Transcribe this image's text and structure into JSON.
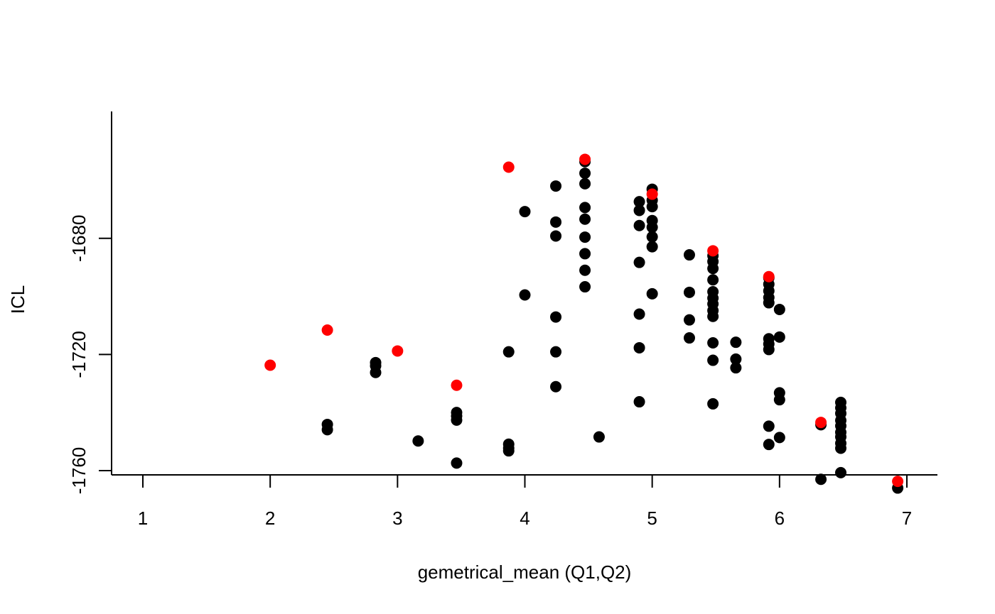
{
  "chart_data": {
    "type": "scatter",
    "title": "",
    "xlabel": "gemetrical_mean (Q1,Q2)",
    "ylabel": "ICL",
    "xlim": [
      1,
      7
    ],
    "ylim": [
      -1760,
      -1650
    ],
    "x_ticks": [
      "1",
      "2",
      "3",
      "4",
      "5",
      "6",
      "7"
    ],
    "y_ticks": [
      "-1760",
      "-1720",
      "-1680"
    ],
    "grid": false,
    "legend": "none",
    "colors": {
      "points": "#000000",
      "highlight": "#ff0000"
    },
    "series": [
      {
        "color": "#000000",
        "points": [
          [
            2.449,
            -1744.1
          ],
          [
            2.449,
            -1745.9
          ],
          [
            2.828,
            -1722.8
          ],
          [
            2.828,
            -1723.9
          ],
          [
            2.828,
            -1726.2
          ],
          [
            3.162,
            -1749.8
          ],
          [
            3.464,
            -1740.0
          ],
          [
            3.464,
            -1741.2
          ],
          [
            3.464,
            -1742.6
          ],
          [
            3.464,
            -1757.4
          ],
          [
            3.873,
            -1719.1
          ],
          [
            3.873,
            -1750.9
          ],
          [
            3.873,
            -1752.3
          ],
          [
            3.873,
            -1753.2
          ],
          [
            4.0,
            -1670.8
          ],
          [
            4.0,
            -1699.5
          ],
          [
            4.243,
            -1662.0
          ],
          [
            4.243,
            -1674.4
          ],
          [
            4.243,
            -1679.2
          ],
          [
            4.243,
            -1707.1
          ],
          [
            4.243,
            -1719.1
          ],
          [
            4.243,
            -1731.1
          ],
          [
            4.472,
            -1653.6
          ],
          [
            4.472,
            -1657.6
          ],
          [
            4.472,
            -1661.2
          ],
          [
            4.472,
            -1669.4
          ],
          [
            4.472,
            -1673.4
          ],
          [
            4.472,
            -1679.6
          ],
          [
            4.472,
            -1685.3
          ],
          [
            4.472,
            -1691.0
          ],
          [
            4.472,
            -1696.7
          ],
          [
            4.583,
            -1748.4
          ],
          [
            4.899,
            -1667.4
          ],
          [
            4.899,
            -1670.4
          ],
          [
            4.899,
            -1675.6
          ],
          [
            4.899,
            -1688.3
          ],
          [
            4.899,
            -1706.1
          ],
          [
            4.899,
            -1717.7
          ],
          [
            4.899,
            -1736.3
          ],
          [
            5.0,
            -1663.1
          ],
          [
            5.0,
            -1666.9
          ],
          [
            5.0,
            -1669.1
          ],
          [
            5.0,
            -1673.9
          ],
          [
            5.0,
            -1676.2
          ],
          [
            5.0,
            -1679.5
          ],
          [
            5.0,
            -1682.9
          ],
          [
            5.0,
            -1699.1
          ],
          [
            5.292,
            -1685.7
          ],
          [
            5.292,
            -1698.6
          ],
          [
            5.292,
            -1708.1
          ],
          [
            5.292,
            -1714.3
          ],
          [
            5.477,
            -1686.0
          ],
          [
            5.477,
            -1688.0
          ],
          [
            5.477,
            -1690.4
          ],
          [
            5.477,
            -1694.3
          ],
          [
            5.477,
            -1698.4
          ],
          [
            5.477,
            -1700.6
          ],
          [
            5.477,
            -1702.6
          ],
          [
            5.477,
            -1704.9
          ],
          [
            5.477,
            -1706.9
          ],
          [
            5.477,
            -1716.0
          ],
          [
            5.477,
            -1722.0
          ],
          [
            5.477,
            -1737.0
          ],
          [
            5.657,
            -1715.8
          ],
          [
            5.657,
            -1721.6
          ],
          [
            5.657,
            -1724.6
          ],
          [
            5.916,
            -1693.6
          ],
          [
            5.916,
            -1695.8
          ],
          [
            5.916,
            -1698.1
          ],
          [
            5.916,
            -1700.4
          ],
          [
            5.916,
            -1702.2
          ],
          [
            5.916,
            -1714.6
          ],
          [
            5.916,
            -1716.4
          ],
          [
            5.916,
            -1718.3
          ],
          [
            5.916,
            -1744.7
          ],
          [
            5.916,
            -1751.0
          ],
          [
            6.0,
            -1704.5
          ],
          [
            6.0,
            -1714.0
          ],
          [
            6.0,
            -1733.2
          ],
          [
            6.0,
            -1735.6
          ],
          [
            6.0,
            -1748.6
          ],
          [
            6.325,
            -1744.2
          ],
          [
            6.325,
            -1763.0
          ],
          [
            6.481,
            -1736.5
          ],
          [
            6.481,
            -1738.4
          ],
          [
            6.481,
            -1740.3
          ],
          [
            6.481,
            -1742.7
          ],
          [
            6.481,
            -1744.6
          ],
          [
            6.481,
            -1746.8
          ],
          [
            6.481,
            -1748.4
          ],
          [
            6.481,
            -1750.6
          ],
          [
            6.481,
            -1752.3
          ],
          [
            6.481,
            -1760.7
          ],
          [
            6.928,
            -1766.0
          ]
        ]
      },
      {
        "color": "#ff0000",
        "points": [
          [
            2.0,
            -1723.7
          ],
          [
            2.449,
            -1711.6
          ],
          [
            3.0,
            -1718.8
          ],
          [
            3.464,
            -1730.6
          ],
          [
            3.873,
            -1655.5
          ],
          [
            4.472,
            -1652.8
          ],
          [
            5.0,
            -1664.8
          ],
          [
            5.477,
            -1684.3
          ],
          [
            5.916,
            -1693.2
          ],
          [
            6.325,
            -1743.4
          ],
          [
            6.928,
            -1763.7
          ]
        ]
      }
    ]
  }
}
